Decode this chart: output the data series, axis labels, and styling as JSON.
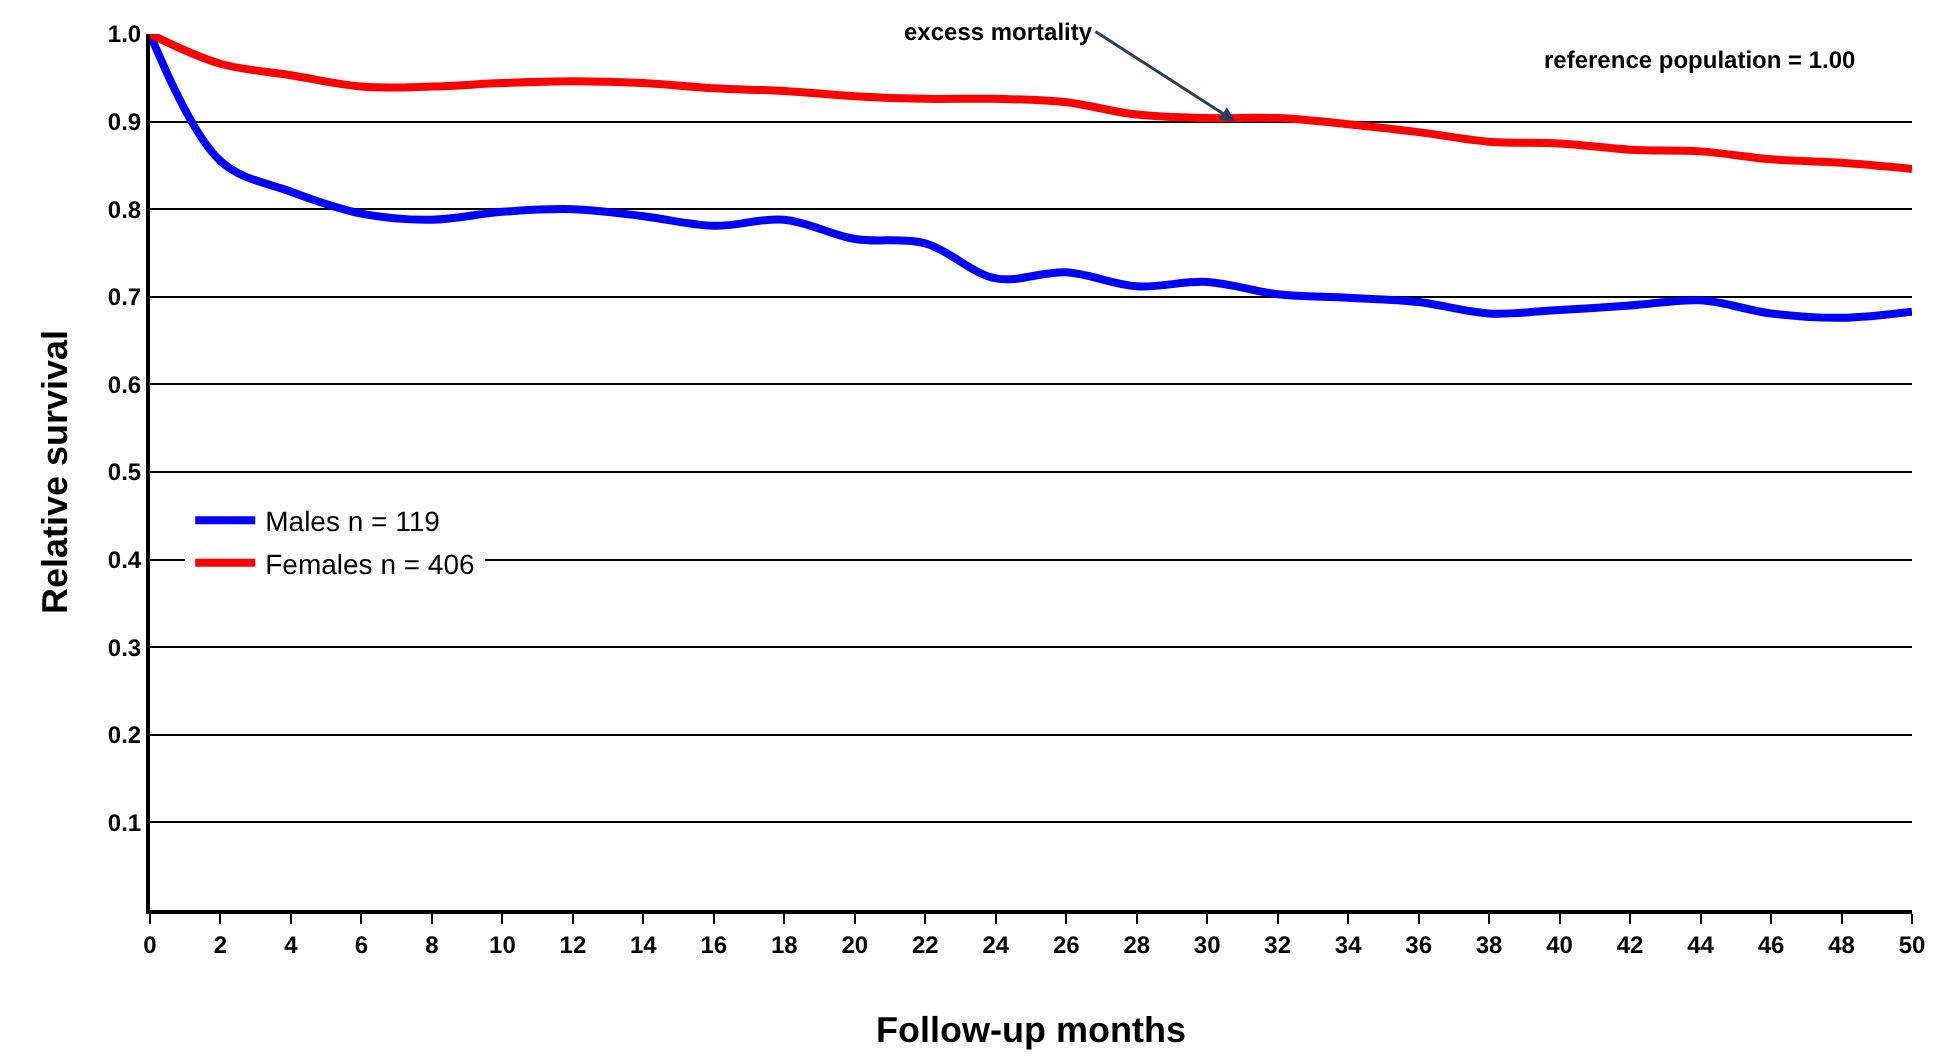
{
  "chart_data": {
    "type": "line",
    "xlabel": "Follow-up months",
    "ylabel": "Relative survival",
    "x": [
      0,
      2,
      4,
      6,
      8,
      10,
      12,
      14,
      16,
      18,
      20,
      22,
      24,
      26,
      28,
      30,
      32,
      34,
      36,
      38,
      40,
      42,
      44,
      46,
      48,
      50
    ],
    "series": [
      {
        "name": "Males n = 119",
        "color": "#0000ff",
        "values": [
          1.0,
          0.855,
          0.82,
          0.795,
          0.788,
          0.797,
          0.8,
          0.792,
          0.781,
          0.788,
          0.766,
          0.761,
          0.721,
          0.728,
          0.712,
          0.717,
          0.703,
          0.699,
          0.694,
          0.681,
          0.685,
          0.69,
          0.696,
          0.681,
          0.676,
          0.683
        ]
      },
      {
        "name": "Females n = 406",
        "color": "#ff0000",
        "values": [
          1.0,
          0.966,
          0.953,
          0.94,
          0.94,
          0.944,
          0.946,
          0.944,
          0.938,
          0.935,
          0.929,
          0.926,
          0.926,
          0.922,
          0.908,
          0.904,
          0.904,
          0.897,
          0.888,
          0.877,
          0.875,
          0.868,
          0.866,
          0.857,
          0.853,
          0.846
        ]
      }
    ],
    "xlim": [
      0,
      50
    ],
    "xticks": [
      0,
      2,
      4,
      6,
      8,
      10,
      12,
      14,
      16,
      18,
      20,
      22,
      24,
      26,
      28,
      30,
      32,
      34,
      36,
      38,
      40,
      42,
      44,
      46,
      48,
      50
    ],
    "ylim": [
      0,
      1.0
    ],
    "yticks": [
      0.1,
      0.2,
      0.3,
      0.4,
      0.5,
      0.6,
      0.7,
      0.8,
      0.9,
      {
        "value": 1.0,
        "label": "1.0"
      }
    ],
    "grid": "y",
    "legend": "left",
    "marker": "none",
    "line_style": "solid",
    "annotations": [
      {
        "text": "excess mortality",
        "x": 30.8,
        "y": 0.9
      },
      "reference population = 1.00"
    ]
  }
}
